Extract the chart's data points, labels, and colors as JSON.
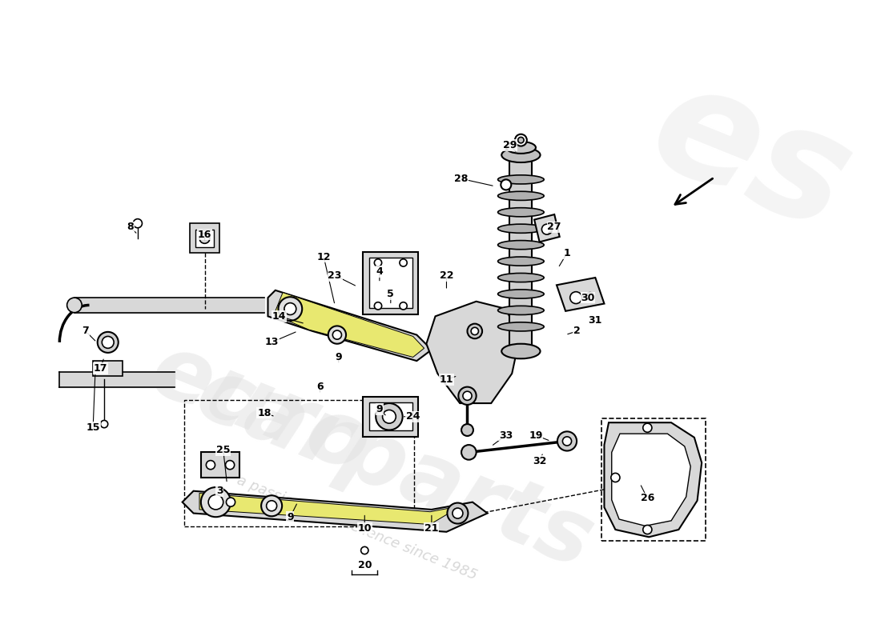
{
  "bg_color": "#ffffff",
  "line_color": "#000000",
  "part_color": "#c8c8c8",
  "highlight_color": "#e8e870",
  "label_list": [
    [
      "1",
      762,
      310
    ],
    [
      "2",
      775,
      415
    ],
    [
      "3",
      295,
      630
    ],
    [
      "4",
      510,
      335
    ],
    [
      "5",
      525,
      365
    ],
    [
      "6",
      430,
      490
    ],
    [
      "7",
      115,
      415
    ],
    [
      "8",
      175,
      275
    ],
    [
      "9",
      455,
      450
    ],
    [
      "9",
      510,
      520
    ],
    [
      "9",
      390,
      665
    ],
    [
      "10",
      490,
      680
    ],
    [
      "11",
      600,
      480
    ],
    [
      "12",
      435,
      315
    ],
    [
      "13",
      365,
      430
    ],
    [
      "14",
      375,
      395
    ],
    [
      "15",
      125,
      545
    ],
    [
      "16",
      275,
      285
    ],
    [
      "17",
      135,
      465
    ],
    [
      "18",
      355,
      525
    ],
    [
      "19",
      720,
      555
    ],
    [
      "20",
      490,
      730
    ],
    [
      "21",
      580,
      680
    ],
    [
      "22",
      600,
      340
    ],
    [
      "23",
      450,
      340
    ],
    [
      "24",
      555,
      530
    ],
    [
      "25",
      300,
      575
    ],
    [
      "26",
      870,
      640
    ],
    [
      "27",
      745,
      275
    ],
    [
      "28",
      620,
      210
    ],
    [
      "29",
      685,
      165
    ],
    [
      "30",
      790,
      370
    ],
    [
      "31",
      800,
      400
    ],
    [
      "32",
      725,
      590
    ],
    [
      "33",
      680,
      555
    ]
  ],
  "leader_lines": [
    [
      762,
      310,
      750,
      330
    ],
    [
      775,
      415,
      760,
      420
    ],
    [
      800,
      400,
      790,
      395
    ],
    [
      790,
      370,
      780,
      375
    ],
    [
      745,
      275,
      735,
      285
    ],
    [
      685,
      165,
      695,
      175
    ],
    [
      620,
      210,
      665,
      220
    ],
    [
      510,
      335,
      510,
      350
    ],
    [
      450,
      340,
      480,
      355
    ],
    [
      600,
      340,
      600,
      360
    ],
    [
      525,
      365,
      525,
      380
    ],
    [
      435,
      315,
      450,
      380
    ],
    [
      365,
      430,
      400,
      415
    ],
    [
      375,
      395,
      410,
      405
    ],
    [
      455,
      450,
      455,
      460
    ],
    [
      510,
      520,
      520,
      530
    ],
    [
      390,
      665,
      400,
      645
    ],
    [
      295,
      630,
      300,
      638
    ],
    [
      355,
      525,
      370,
      530
    ],
    [
      300,
      575,
      305,
      620
    ],
    [
      490,
      680,
      490,
      660
    ],
    [
      580,
      680,
      580,
      660
    ],
    [
      430,
      490,
      430,
      500
    ],
    [
      555,
      530,
      540,
      530
    ],
    [
      115,
      415,
      130,
      430
    ],
    [
      175,
      275,
      185,
      285
    ],
    [
      125,
      545,
      128,
      470
    ],
    [
      135,
      465,
      140,
      450
    ],
    [
      275,
      285,
      275,
      295
    ],
    [
      870,
      640,
      860,
      620
    ],
    [
      720,
      555,
      740,
      563
    ],
    [
      725,
      590,
      730,
      578
    ],
    [
      680,
      555,
      660,
      570
    ],
    [
      600,
      480,
      615,
      475
    ]
  ]
}
